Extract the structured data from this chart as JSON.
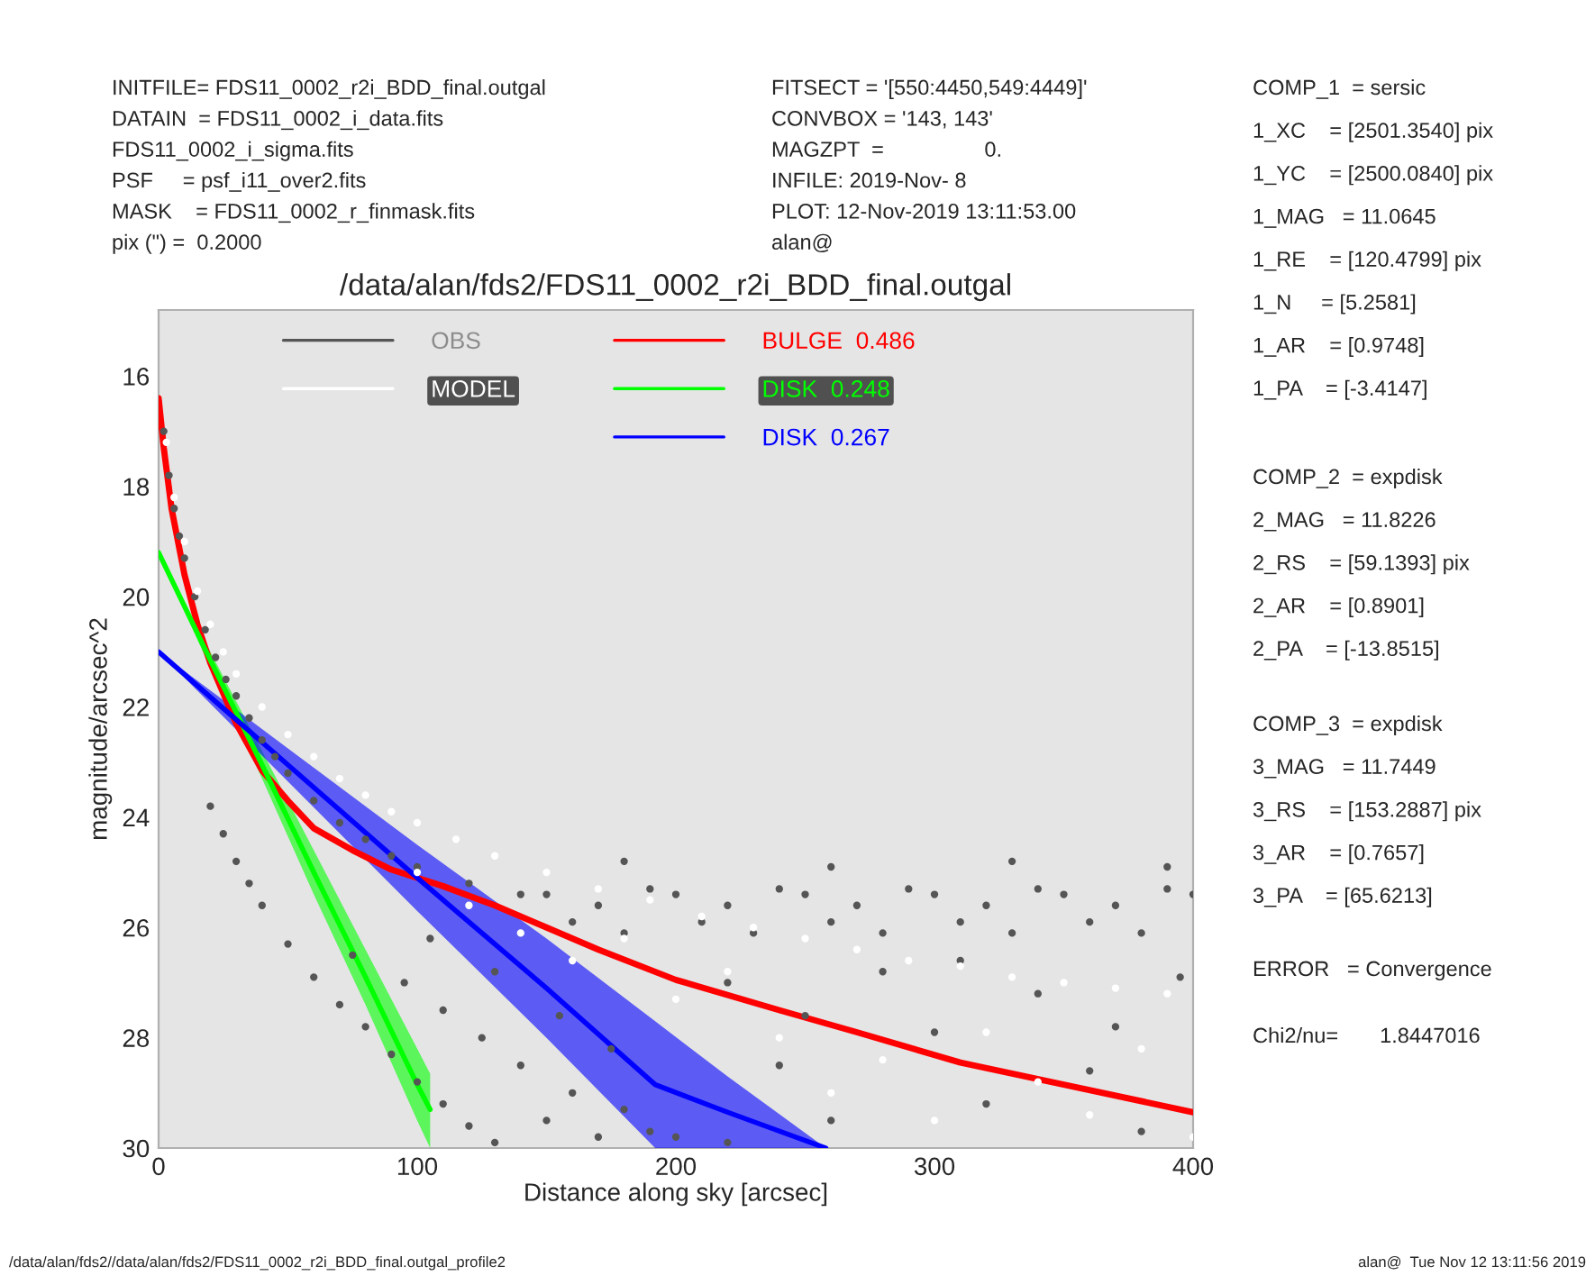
{
  "chart_data": {
    "type": "scatter",
    "title": "/data/alan/fds2/FDS11_0002_r2i_BDD_final.outgal",
    "xlabel": "Distance along sky [arcsec]",
    "ylabel": "magnitude/arcsec^2",
    "xlim": [
      0,
      400
    ],
    "xticks": [
      0,
      100,
      200,
      300,
      400
    ],
    "ylim": [
      30,
      14.8
    ],
    "yticks": [
      16,
      18,
      20,
      22,
      24,
      26,
      28,
      30
    ],
    "grid": false,
    "legend": "top",
    "annotations": [
      "INITFILE= FDS11_0002_r2i_BDD_final.outgal\nDATAIN  = FDS11_0002_i_data.fits\nFDS11_0002_i_sigma.fits\nPSF     = psf_i11_over2.fits\nMASK    = FDS11_0002_r_finmask.fits\npix (\") =  0.2000",
      "FITSECT = '[550:4450,549:4449]'\nCONVBOX = '143, 143'\nMAGZPT  =                 0.\nINFILE: 2019-Nov- 8\nPLOT: 12-Nov-2019 13:11:53.00\nalan@",
      "COMP_1  = sersic\n1_XC    = [2501.3540] pix\n1_YC    = [2500.0840] pix\n1_MAG   = 11.0645\n1_RE    = [120.4799] pix\n1_N     = [5.2581]\n1_AR    = [0.9748]\n1_PA    = [-3.4147]",
      "COMP_2  = expdisk\n2_MAG   = 11.8226\n2_RS    = [59.1393] pix\n2_AR    = [0.8901]\n2_PA    = [-13.8515]",
      "COMP_3  = expdisk\n3_MAG   = 11.7449\n3_RS    = [153.2887] pix\n3_AR    = [0.7657]\n3_PA    = [65.6213]",
      "ERROR   = Convergence",
      "Chi2/nu=       1.8447016",
      "/data/alan/fds2//data/alan/fds2/FDS11_0002_r2i_BDD_final.outgal_profile2",
      "alan@  Tue Nov 12 13:11:56 2019"
    ],
    "series": [
      {
        "name": "OBS",
        "type": "scatter",
        "color": "#555555",
        "marker": "circle",
        "x": [
          2,
          4,
          6,
          8,
          10,
          14,
          18,
          22,
          26,
          30,
          35,
          40,
          45,
          50,
          60,
          70,
          80,
          90,
          100,
          120,
          140,
          20,
          25,
          30,
          35,
          40,
          50,
          60,
          70,
          80,
          90,
          100,
          110,
          120,
          130,
          150,
          170,
          190,
          75,
          95,
          110,
          125,
          140,
          160,
          180,
          200,
          220,
          105,
          130,
          155,
          175,
          220,
          240,
          260,
          280,
          300,
          320,
          340,
          360,
          380,
          395,
          250,
          310,
          370,
          150,
          160,
          170,
          180,
          190,
          200,
          210,
          220,
          230,
          240,
          250,
          260,
          270,
          280,
          290,
          300,
          310,
          320,
          330,
          340,
          350,
          360,
          370,
          380,
          390,
          400,
          180,
          260,
          330,
          390
        ],
        "values": [
          17.0,
          17.8,
          18.4,
          18.9,
          19.3,
          20.0,
          20.6,
          21.1,
          21.5,
          21.8,
          22.2,
          22.6,
          22.9,
          23.2,
          23.7,
          24.1,
          24.4,
          24.7,
          24.9,
          25.2,
          25.4,
          23.8,
          24.3,
          24.8,
          25.2,
          25.6,
          26.3,
          26.9,
          27.4,
          27.8,
          28.3,
          28.8,
          29.2,
          29.6,
          29.9,
          29.5,
          29.8,
          29.7,
          26.5,
          27.0,
          27.5,
          28.0,
          28.5,
          29.0,
          29.3,
          29.8,
          29.9,
          26.2,
          26.8,
          27.6,
          28.2,
          27.0,
          28.5,
          29.5,
          26.8,
          27.9,
          29.2,
          27.2,
          28.6,
          29.7,
          26.9,
          27.6,
          26.6,
          27.8,
          25.4,
          25.9,
          25.6,
          26.1,
          25.3,
          25.4,
          25.9,
          25.6,
          26.1,
          25.3,
          25.4,
          25.9,
          25.6,
          26.1,
          25.3,
          25.4,
          25.9,
          25.6,
          26.1,
          25.3,
          25.4,
          25.9,
          25.6,
          26.1,
          25.3,
          25.4,
          24.8,
          24.9,
          24.8,
          24.9
        ]
      },
      {
        "name": "MODEL",
        "type": "scatter",
        "color": "#ffffff",
        "marker": "circle",
        "x": [
          3,
          6,
          10,
          15,
          20,
          25,
          30,
          40,
          50,
          60,
          70,
          80,
          90,
          100,
          115,
          130,
          150,
          170,
          190,
          210,
          230,
          250,
          270,
          290,
          310,
          330,
          350,
          370,
          390,
          100,
          120,
          140,
          160,
          200,
          240,
          260,
          280,
          300,
          320,
          340,
          360,
          380,
          400,
          220,
          180
        ],
        "values": [
          17.2,
          18.2,
          19.0,
          19.9,
          20.5,
          21.0,
          21.4,
          22.0,
          22.5,
          22.9,
          23.3,
          23.6,
          23.9,
          24.1,
          24.4,
          24.7,
          25.0,
          25.3,
          25.5,
          25.8,
          26.0,
          26.2,
          26.4,
          26.6,
          26.7,
          26.9,
          27.0,
          27.1,
          27.2,
          25.0,
          25.6,
          26.1,
          26.6,
          27.3,
          28.0,
          29.0,
          28.4,
          29.5,
          27.9,
          28.8,
          29.4,
          28.2,
          29.8,
          26.8,
          26.2
        ]
      },
      {
        "name": "BULGE  0.486",
        "type": "line",
        "color": "#ff0000",
        "marker": "none",
        "x": [
          0,
          2,
          5,
          10,
          15,
          20,
          30,
          40,
          50,
          60,
          75,
          90,
          110,
          130,
          150,
          170,
          200,
          240,
          270,
          310,
          350,
          400
        ],
        "values": [
          16.4,
          17.3,
          18.4,
          19.6,
          20.5,
          21.2,
          22.3,
          23.15,
          23.7,
          24.2,
          24.6,
          24.95,
          25.25,
          25.6,
          26.0,
          26.4,
          26.95,
          27.5,
          27.9,
          28.45,
          28.85,
          29.35
        ]
      },
      {
        "name": "DISK  0.248",
        "type": "line",
        "color": "#00ff00",
        "marker": "none",
        "x": [
          0,
          20,
          40,
          60,
          80,
          100,
          105
        ],
        "values": [
          19.2,
          21.15,
          23.05,
          25.0,
          26.9,
          28.85,
          29.3
        ],
        "lower": [
          19.2,
          21.0,
          22.8,
          24.6,
          26.4,
          28.2,
          28.65
        ],
        "upper": [
          19.2,
          21.3,
          23.3,
          25.4,
          27.4,
          29.5,
          30
        ]
      },
      {
        "name": "DISK  0.267",
        "type": "line",
        "color": "#0000ff",
        "marker": "none",
        "x": [
          0,
          50,
          100,
          150,
          192,
          220,
          258
        ],
        "values": [
          21.0,
          23.05,
          25.1,
          27.1,
          28.85,
          29.35,
          30
        ],
        "lower": [
          21.0,
          22.75,
          24.5,
          26.2,
          27.7,
          28.7,
          30
        ],
        "upper": [
          21.0,
          23.35,
          25.7,
          28.0,
          30,
          30,
          30
        ]
      }
    ]
  }
}
